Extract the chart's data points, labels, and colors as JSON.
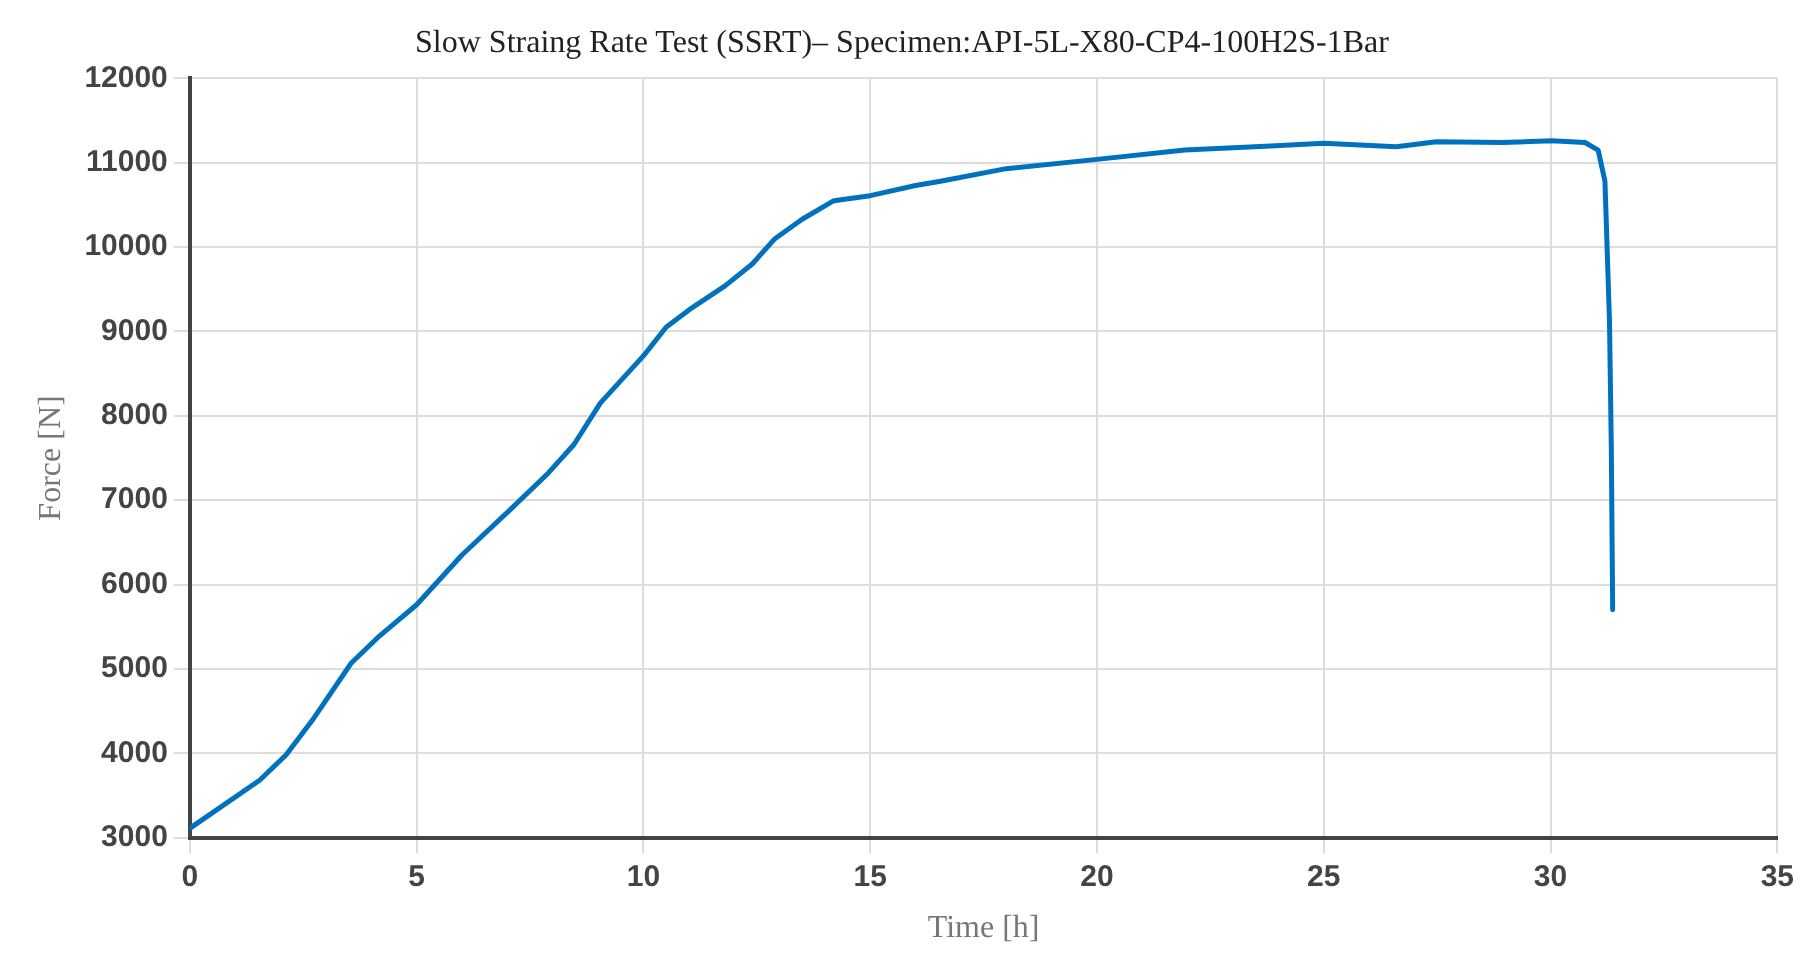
{
  "chart_data": {
    "type": "line",
    "title": "Slow Straing Rate Test (SSRT)– Specimen:API-5L-X80-CP4-100H2S-1Bar",
    "xlabel": "Time [h]",
    "ylabel": "Force [N]",
    "x": [
      0,
      1.54,
      2.12,
      2.7,
      3.56,
      4.14,
      5,
      6,
      7.03,
      7.9,
      8.47,
      9.05,
      10,
      10.5,
      11.07,
      11.8,
      12.4,
      12.9,
      13.5,
      14.2,
      15,
      16,
      16.55,
      18,
      20,
      21.94,
      23.83,
      25,
      26.6,
      27.48,
      28.94,
      30.03,
      30.76,
      31.05,
      31.2,
      31.3,
      31.34,
      31.37
    ],
    "series": [
      {
        "color": "#0072bd",
        "values": [
          3110,
          3680,
          3980,
          4390,
          5070,
          5370,
          5760,
          6350,
          6870,
          7320,
          7660,
          8150,
          8710,
          9050,
          9280,
          9540,
          9800,
          10100,
          10330,
          10550,
          10610,
          10730,
          10780,
          10930,
          11040,
          11150,
          11200,
          11230,
          11190,
          11250,
          11240,
          11260,
          11240,
          11150,
          10780,
          9120,
          7620,
          5700
        ]
      }
    ],
    "xlim": [
      0,
      35
    ],
    "xticks": [
      0,
      5,
      10,
      15,
      20,
      25,
      30,
      35
    ],
    "ylim": [
      3000,
      12000
    ],
    "yticks": [
      3000,
      4000,
      5000,
      6000,
      7000,
      8000,
      9000,
      10000,
      11000,
      12000
    ],
    "grid": true,
    "legend": false,
    "marker": "none",
    "line_style": "solid"
  }
}
